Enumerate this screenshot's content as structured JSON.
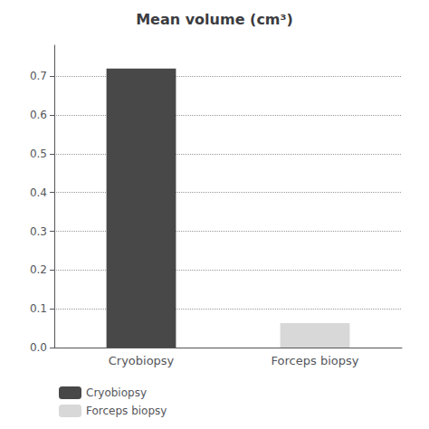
{
  "chart_data": {
    "type": "bar",
    "title": "Mean volume (cm³)",
    "categories": [
      "Cryobiopsy",
      "Forceps biopsy"
    ],
    "series": [
      {
        "name": "Cryobiopsy",
        "color": "#484848",
        "values": [
          0.72,
          null
        ]
      },
      {
        "name": "Forceps biopsy",
        "color": "#d8d8d8",
        "values": [
          null,
          0.063
        ]
      }
    ],
    "ylim": [
      0,
      0.78
    ],
    "yticks": [
      {
        "value": 0,
        "label": "0.0"
      },
      0.1,
      0.2,
      0.3,
      0.4,
      0.5,
      0.6,
      0.7
    ],
    "grid": true,
    "legend": "lower left"
  }
}
